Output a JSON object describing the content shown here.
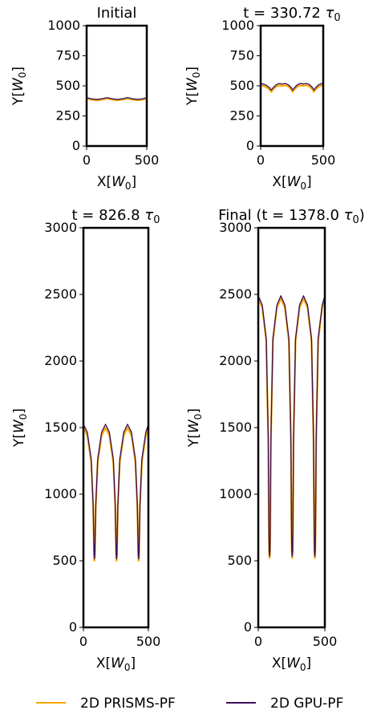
{
  "chart_data": [
    {
      "type": "line",
      "title": "Initial",
      "xlabel": "X[W0]",
      "ylabel": "Y[W0]",
      "xlim": [
        0,
        500
      ],
      "ylim": [
        0,
        1000
      ],
      "xticks": [
        0,
        500
      ],
      "yticks": [
        0,
        250,
        500,
        750,
        1000
      ],
      "x_tick_labels": [
        "0",
        "500"
      ],
      "y_tick_labels": [
        "0",
        "250",
        "500",
        "750",
        "1000"
      ],
      "series": [
        {
          "name": "2D PRISMS-PF",
          "color": "#f5a500",
          "x": [
            0,
            40,
            85,
            130,
            170,
            210,
            255,
            300,
            340,
            380,
            425,
            470,
            500
          ],
          "y": [
            395,
            385,
            380,
            386,
            395,
            386,
            380,
            386,
            395,
            386,
            380,
            386,
            395
          ]
        },
        {
          "name": "2D GPU-PF",
          "color": "#3b0f5a",
          "x": [
            0,
            40,
            85,
            130,
            170,
            210,
            255,
            300,
            340,
            380,
            425,
            470,
            500
          ],
          "y": [
            402,
            392,
            387,
            393,
            402,
            393,
            387,
            393,
            402,
            393,
            387,
            393,
            402
          ]
        }
      ]
    },
    {
      "type": "line",
      "title_prefix": "t = 330.72 ",
      "title_symbol": "τ",
      "title_sub": "0",
      "xlabel": "X[W0]",
      "ylabel": "Y[W0]",
      "xlim": [
        0,
        500
      ],
      "ylim": [
        0,
        1000
      ],
      "xticks": [
        0,
        500
      ],
      "yticks": [
        0,
        250,
        500,
        750,
        1000
      ],
      "x_tick_labels": [
        "0",
        "500"
      ],
      "y_tick_labels": [
        "0",
        "250",
        "500",
        "750",
        "1000"
      ],
      "series": [
        {
          "name": "2D PRISMS-PF",
          "color": "#f5a500",
          "x": [
            0,
            20,
            45,
            70,
            85,
            100,
            125,
            150,
            170,
            195,
            220,
            245,
            255,
            270,
            295,
            320,
            340,
            365,
            390,
            415,
            425,
            440,
            465,
            490,
            500
          ],
          "y": [
            505,
            500,
            490,
            470,
            450,
            470,
            495,
            505,
            500,
            505,
            495,
            470,
            450,
            470,
            495,
            505,
            500,
            505,
            495,
            470,
            450,
            470,
            495,
            505,
            505
          ]
        },
        {
          "name": "2D GPU-PF",
          "color": "#3b0f5a",
          "x": [
            0,
            20,
            45,
            70,
            85,
            100,
            125,
            150,
            170,
            195,
            220,
            245,
            255,
            270,
            295,
            320,
            340,
            365,
            390,
            415,
            425,
            440,
            465,
            490,
            500
          ],
          "y": [
            520,
            515,
            505,
            485,
            465,
            485,
            510,
            520,
            515,
            520,
            510,
            485,
            465,
            485,
            510,
            520,
            515,
            520,
            510,
            485,
            465,
            485,
            510,
            520,
            520
          ]
        }
      ]
    },
    {
      "type": "line",
      "title_prefix": "t = 826.8 ",
      "title_symbol": "τ",
      "title_sub": "0",
      "xlabel": "X[W0]",
      "ylabel": "Y[W0]",
      "xlim": [
        0,
        500
      ],
      "ylim": [
        0,
        3000
      ],
      "xticks": [
        0,
        500
      ],
      "yticks": [
        0,
        500,
        1000,
        1500,
        2000,
        2500,
        3000
      ],
      "x_tick_labels": [
        "0",
        "500"
      ],
      "y_tick_labels": [
        "0",
        "500",
        "1000",
        "1500",
        "2000",
        "2500",
        "3000"
      ],
      "series": [
        {
          "name": "2D PRISMS-PF",
          "color": "#f5a500",
          "x": [
            0,
            30,
            60,
            75,
            80,
            82,
            85,
            88,
            90,
            95,
            110,
            140,
            170,
            200,
            230,
            245,
            250,
            252,
            255,
            258,
            260,
            265,
            280,
            310,
            340,
            370,
            400,
            415,
            420,
            422,
            425,
            428,
            430,
            435,
            450,
            480,
            500
          ],
          "y": [
            1500,
            1440,
            1240,
            900,
            640,
            540,
            500,
            540,
            640,
            900,
            1240,
            1440,
            1500,
            1440,
            1240,
            900,
            640,
            540,
            500,
            540,
            640,
            900,
            1240,
            1440,
            1500,
            1440,
            1240,
            900,
            640,
            540,
            500,
            540,
            640,
            900,
            1240,
            1440,
            1500
          ]
        },
        {
          "name": "2D GPU-PF",
          "color": "#3b0f5a",
          "x": [
            0,
            30,
            60,
            75,
            80,
            82,
            85,
            88,
            90,
            95,
            110,
            140,
            170,
            200,
            230,
            245,
            250,
            252,
            255,
            258,
            260,
            265,
            280,
            310,
            340,
            370,
            400,
            415,
            420,
            422,
            425,
            428,
            430,
            435,
            450,
            480,
            500
          ],
          "y": [
            1525,
            1465,
            1265,
            920,
            650,
            550,
            515,
            550,
            650,
            920,
            1265,
            1465,
            1525,
            1465,
            1265,
            920,
            650,
            550,
            515,
            550,
            650,
            920,
            1265,
            1465,
            1525,
            1465,
            1265,
            920,
            650,
            550,
            515,
            550,
            650,
            920,
            1265,
            1465,
            1525
          ]
        }
      ]
    },
    {
      "type": "line",
      "title_prefix": "Final (t = 1378.0 ",
      "title_symbol": "τ",
      "title_sub": "0",
      "title_suffix": ")",
      "xlabel": "X[W0]",
      "ylabel": "Y[W0]",
      "xlim": [
        0,
        500
      ],
      "ylim": [
        0,
        3000
      ],
      "xticks": [
        0,
        500
      ],
      "yticks": [
        0,
        500,
        1000,
        1500,
        2000,
        2500,
        3000
      ],
      "x_tick_labels": [
        "0",
        "500"
      ],
      "y_tick_labels": [
        "0",
        "500",
        "1000",
        "1500",
        "2000",
        "2500",
        "3000"
      ],
      "series": [
        {
          "name": "2D PRISMS-PF",
          "color": "#f5a500",
          "x": [
            0,
            30,
            60,
            75,
            80,
            82,
            85,
            88,
            90,
            95,
            110,
            140,
            170,
            200,
            230,
            245,
            250,
            252,
            255,
            258,
            260,
            265,
            280,
            310,
            340,
            370,
            400,
            415,
            420,
            422,
            425,
            428,
            430,
            435,
            450,
            480,
            500
          ],
          "y": [
            2470,
            2400,
            2150,
            1400,
            700,
            560,
            520,
            560,
            700,
            1400,
            2150,
            2400,
            2470,
            2400,
            2150,
            1400,
            700,
            560,
            520,
            560,
            700,
            1400,
            2150,
            2400,
            2470,
            2400,
            2150,
            1400,
            700,
            560,
            520,
            560,
            700,
            1400,
            2150,
            2400,
            2470
          ]
        },
        {
          "name": "2D GPU-PF",
          "color": "#3b0f5a",
          "x": [
            0,
            30,
            60,
            75,
            80,
            82,
            85,
            88,
            90,
            95,
            110,
            140,
            170,
            200,
            230,
            245,
            250,
            252,
            255,
            258,
            260,
            265,
            280,
            310,
            340,
            370,
            400,
            415,
            420,
            422,
            425,
            428,
            430,
            435,
            450,
            480,
            500
          ],
          "y": [
            2490,
            2420,
            2170,
            1420,
            715,
            575,
            535,
            575,
            715,
            1420,
            2170,
            2420,
            2490,
            2420,
            2170,
            1420,
            715,
            575,
            535,
            575,
            715,
            1420,
            2170,
            2420,
            2490,
            2420,
            2170,
            1420,
            715,
            575,
            535,
            575,
            715,
            1420,
            2170,
            2420,
            2490
          ]
        }
      ]
    }
  ],
  "legend": {
    "placement": "bottom",
    "entries": [
      {
        "label": "2D PRISMS-PF",
        "color": "#f5a500"
      },
      {
        "label": "2D GPU-PF",
        "color": "#3b0f5a"
      }
    ]
  }
}
